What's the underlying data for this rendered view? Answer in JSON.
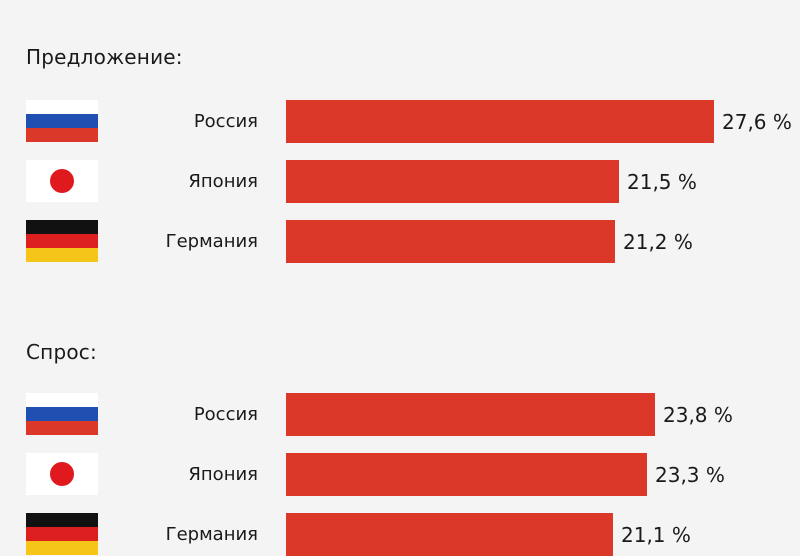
{
  "chart_data": {
    "type": "bar",
    "unit": "%",
    "groups": [
      {
        "title": "Предложение:",
        "rows": [
          {
            "country": "Россия",
            "flag": "flag-russia-icon",
            "value": 27.6,
            "label": "27,6 %"
          },
          {
            "country": "Япония",
            "flag": "flag-japan-icon",
            "value": 21.5,
            "label": "21,5 %"
          },
          {
            "country": "Германия",
            "flag": "flag-germany-icon",
            "value": 21.2,
            "label": "21,2 %"
          }
        ]
      },
      {
        "title": "Спрос:",
        "rows": [
          {
            "country": "Россия",
            "flag": "flag-russia-icon",
            "value": 23.8,
            "label": "23,8 %"
          },
          {
            "country": "Япония",
            "flag": "flag-japan-icon",
            "value": 23.3,
            "label": "23,3 %"
          },
          {
            "country": "Германия",
            "flag": "flag-germany-icon",
            "value": 21.1,
            "label": "21,1 %"
          }
        ]
      }
    ]
  },
  "colors": {
    "bar": "#dc3829",
    "background": "#f4f4f4",
    "text": "#1a1a1a"
  },
  "flag_colors": {
    "russia": [
      "#ffffff",
      "#1f4fb0",
      "#dc3829"
    ],
    "japan": [
      "#ffffff",
      "#e0191e"
    ],
    "germany": [
      "#111111",
      "#dd1f1f",
      "#f5c518"
    ]
  }
}
